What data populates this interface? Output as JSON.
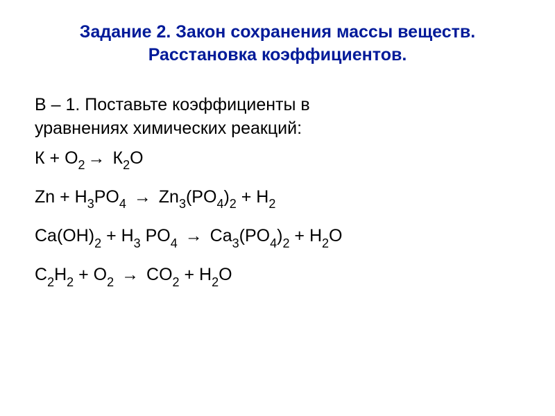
{
  "title_line1": "Задание 2. Закон сохранения массы веществ.",
  "title_line2": "Расстановка коэффициентов.",
  "intro_line1": "В – 1. Поставьте коэффициенты в",
  "intro_line2": "уравнениях химических реакций:",
  "eq1": {
    "lhs_a": "К",
    "plus1": " +  ",
    "lhs_b": "O",
    "lhs_b_sub": "2",
    "arrow": " → ",
    "rhs_a": " К",
    "rhs_a_sub": "2",
    "rhs_b": "О"
  },
  "eq2": {
    "t1": "Zn +  H",
    "s1": "3",
    "t2": "PO",
    "s2": "4",
    "t3": "   ",
    "arrow": "→",
    "t4": "   Zn",
    "s3": "3",
    "t5": "(PO",
    "s4": "4",
    "t6": ")",
    "s5": "2",
    "t7": " +    H",
    "s6": "2"
  },
  "eq3": {
    "t1": "Ca(OH)",
    "s1": "2",
    "t2": " +  H",
    "s2": "3",
    "t3": " PO",
    "s3": "4",
    "t4": "  ",
    "arrow": "→",
    "t5": "  Ca",
    "s4": "3",
    "t6": "(PO",
    "s5": "4",
    "t7": ")",
    "s6": "2",
    "t8": " +  H",
    "s7": "2",
    "t9": "O"
  },
  "eq4": {
    "t1": "C",
    "s1": "2",
    "t2": "H",
    "s2": "2",
    "t3": " +   O",
    "s3": "2",
    "t4": " ",
    "arrow": "→",
    "t5": "  CO",
    "s4": "2",
    "t6": " +  H",
    "s5": "2",
    "t7": "O"
  },
  "colors": {
    "title": "#001a99",
    "body": "#000000",
    "background": "#ffffff"
  },
  "typography": {
    "title_fontsize": 25,
    "body_fontsize": 25,
    "subscript_scale": 0.72,
    "font_family": "Arial"
  }
}
